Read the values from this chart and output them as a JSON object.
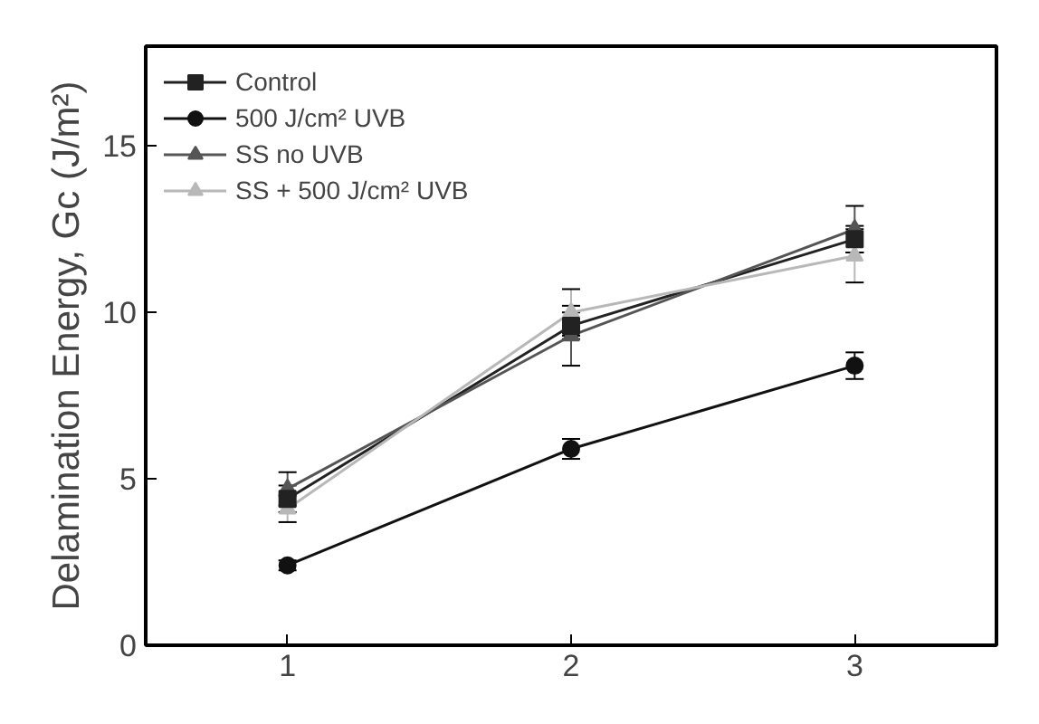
{
  "chart_data": {
    "type": "line",
    "ylabel": "Delamination Energy, Gc (J/m²)",
    "x": [
      1,
      2,
      3
    ],
    "xlim": [
      0.5,
      3.5
    ],
    "ylim": [
      0,
      18
    ],
    "xticks": [
      1,
      2,
      3
    ],
    "yticks": [
      0,
      5,
      10,
      15
    ],
    "grid": false,
    "legend": "top left",
    "line_style": "solid",
    "series": [
      {
        "name": "Control",
        "color": "#222222",
        "marker": "square",
        "values": [
          4.4,
          9.6,
          12.2
        ],
        "errors": [
          0.4,
          0.4,
          0.4
        ]
      },
      {
        "name": "500 J/cm² UVB",
        "color": "#111111",
        "marker": "circle",
        "values": [
          2.4,
          5.9,
          8.4
        ],
        "errors": [
          0.15,
          0.3,
          0.4
        ]
      },
      {
        "name": "SS no UVB",
        "color": "#555555",
        "marker": "triangle",
        "values": [
          4.7,
          9.3,
          12.5
        ],
        "errors": [
          0.5,
          0.9,
          0.7
        ]
      },
      {
        "name": "SS + 500 J/cm² UVB",
        "color": "#b8b8b8",
        "marker": "triangle",
        "values": [
          4.1,
          10.0,
          11.7
        ],
        "errors": [
          0.4,
          0.7,
          0.8
        ]
      }
    ]
  }
}
